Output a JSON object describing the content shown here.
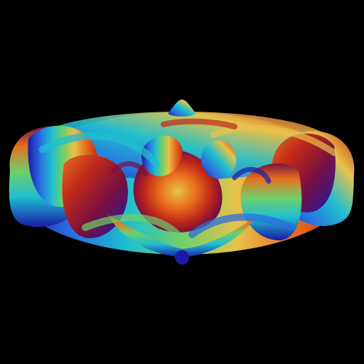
{
  "scene": {
    "background_color": "#000000",
    "subject": "rainbow-colored-torus-fractal-render",
    "palette": [
      "#1a1aa8",
      "#2a6fe0",
      "#1fbfd0",
      "#6fd06a",
      "#e8c24a",
      "#e8701e",
      "#c02818",
      "#7a1040"
    ]
  }
}
